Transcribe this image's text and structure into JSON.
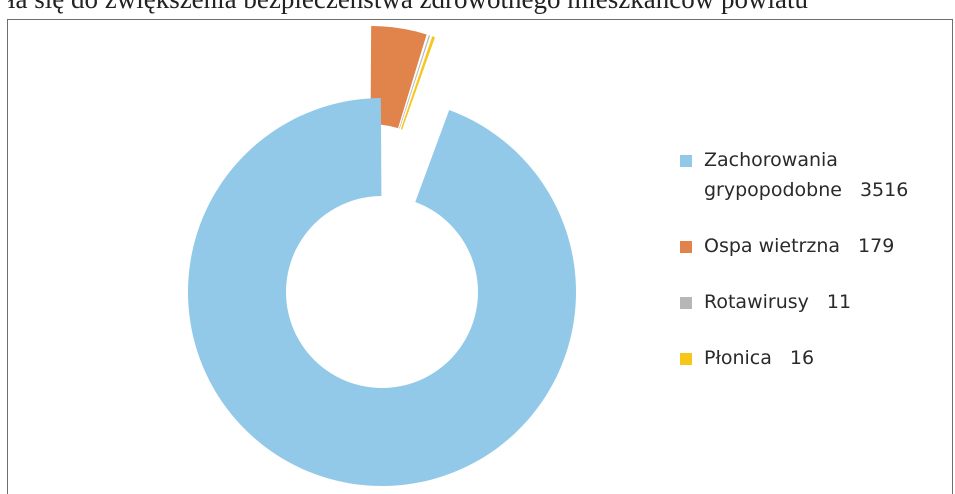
{
  "header_text": "ła się do zwiększenia bezpieczeństwa zdrowotnego mieszkańców powiatu",
  "chart_data": {
    "type": "pie",
    "donut": true,
    "exploded_slices": [
      "Ospa wietrzna",
      "Rotawirusy",
      "Płonica"
    ],
    "legend_position": "right",
    "title": "",
    "slices": [
      {
        "label": "Zachorowania grypopodobne",
        "label_line1": "Zachorowania",
        "label_line2": "grypopodobne",
        "value": 3516,
        "value_text": "3516",
        "color": "#92c9e9"
      },
      {
        "label": "Ospa wietrzna",
        "value": 179,
        "value_text": "179",
        "color": "#e0844c"
      },
      {
        "label": "Rotawirusy",
        "value": 11,
        "value_text": "11",
        "color": "#b7b7b7"
      },
      {
        "label": "Płonica",
        "value": 16,
        "value_text": "16",
        "color": "#f6c61b"
      }
    ]
  }
}
